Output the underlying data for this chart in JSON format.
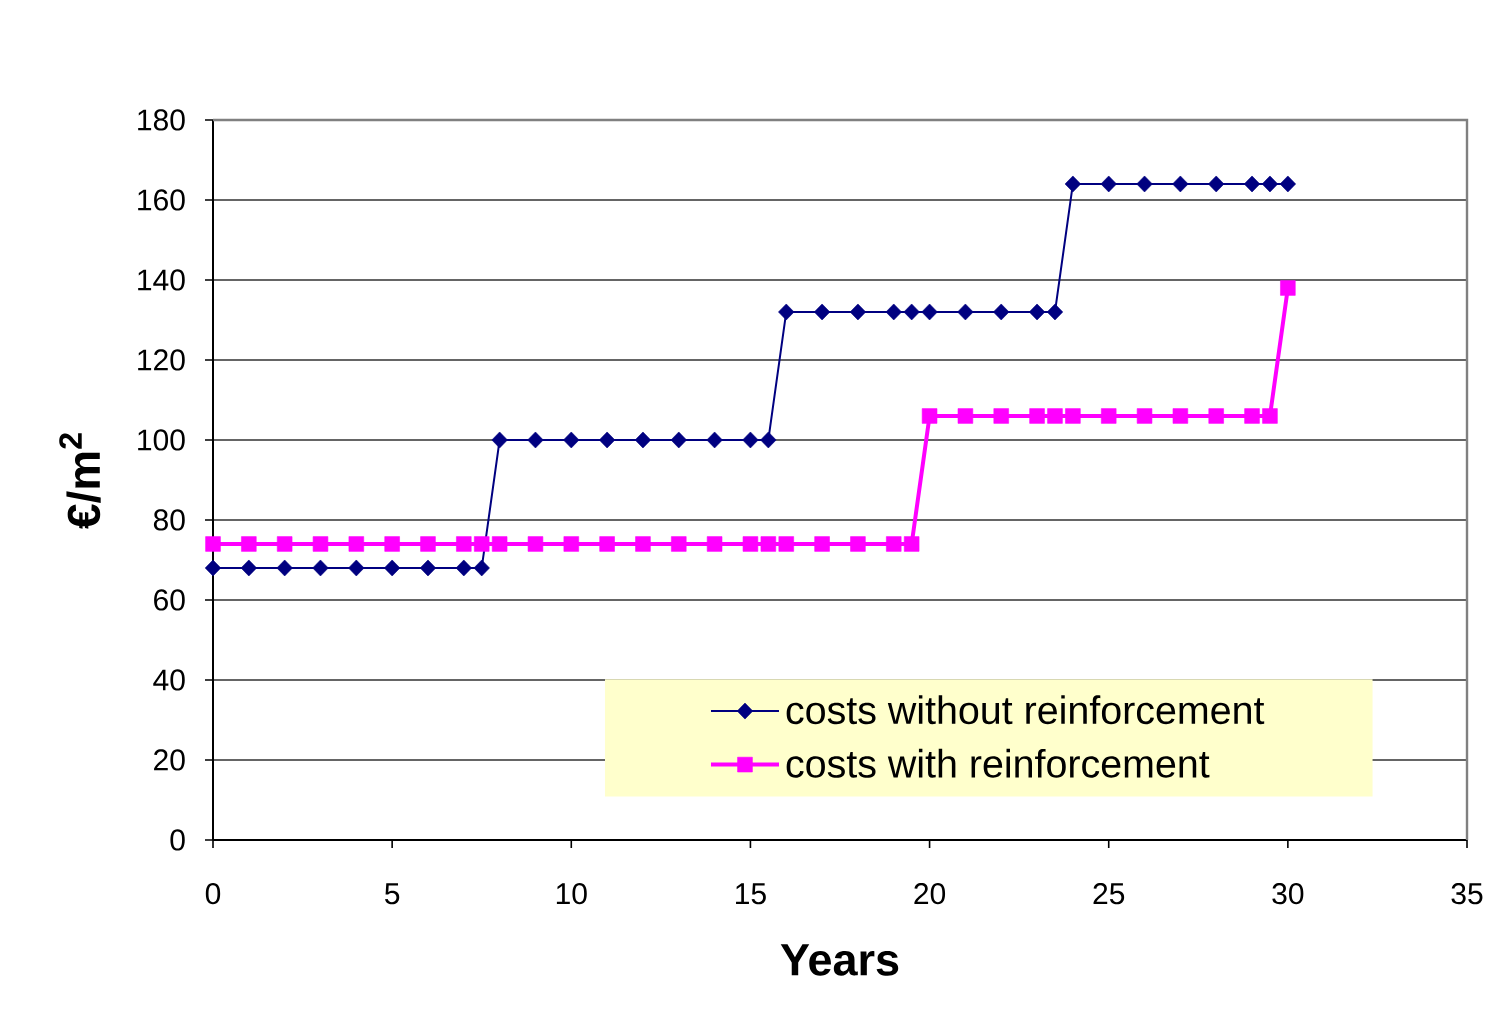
{
  "chart_data": {
    "type": "line",
    "xlabel": "Years",
    "ylabel": "€/m$^{2}$",
    "x": [
      0,
      1,
      2,
      3,
      4,
      5,
      6,
      7,
      7.5,
      8,
      9,
      10,
      11,
      12,
      13,
      14,
      15,
      15.5,
      16,
      17,
      18,
      19,
      19.5,
      20,
      21,
      22,
      23,
      23.5,
      24,
      25,
      26,
      27,
      28,
      29,
      29.5,
      30
    ],
    "series": [
      {
        "name": "costs without reinforcement",
        "color": "#000080",
        "marker": "diamond",
        "values": [
          68,
          68,
          68,
          68,
          68,
          68,
          68,
          68,
          68,
          100,
          100,
          100,
          100,
          100,
          100,
          100,
          100,
          100,
          132,
          132,
          132,
          132,
          132,
          132,
          132,
          132,
          132,
          132,
          164,
          164,
          164,
          164,
          164,
          164,
          164,
          164
        ]
      },
      {
        "name": "costs with reinforcement",
        "color": "#ff00ff",
        "marker": "square",
        "values": [
          74,
          74,
          74,
          74,
          74,
          74,
          74,
          74,
          74,
          74,
          74,
          74,
          74,
          74,
          74,
          74,
          74,
          74,
          74,
          74,
          74,
          74,
          74,
          106,
          106,
          106,
          106,
          106,
          106,
          106,
          106,
          106,
          106,
          106,
          106,
          138
        ]
      }
    ],
    "xlim": [
      0,
      35
    ],
    "xticks": [
      0,
      5,
      10,
      15,
      20,
      25,
      30,
      35
    ],
    "ylim": [
      0,
      180
    ],
    "yticks": [
      0,
      20,
      40,
      60,
      80,
      100,
      120,
      140,
      160,
      180
    ],
    "grid": "y",
    "legend": "bottom right",
    "line_style": "solid"
  }
}
